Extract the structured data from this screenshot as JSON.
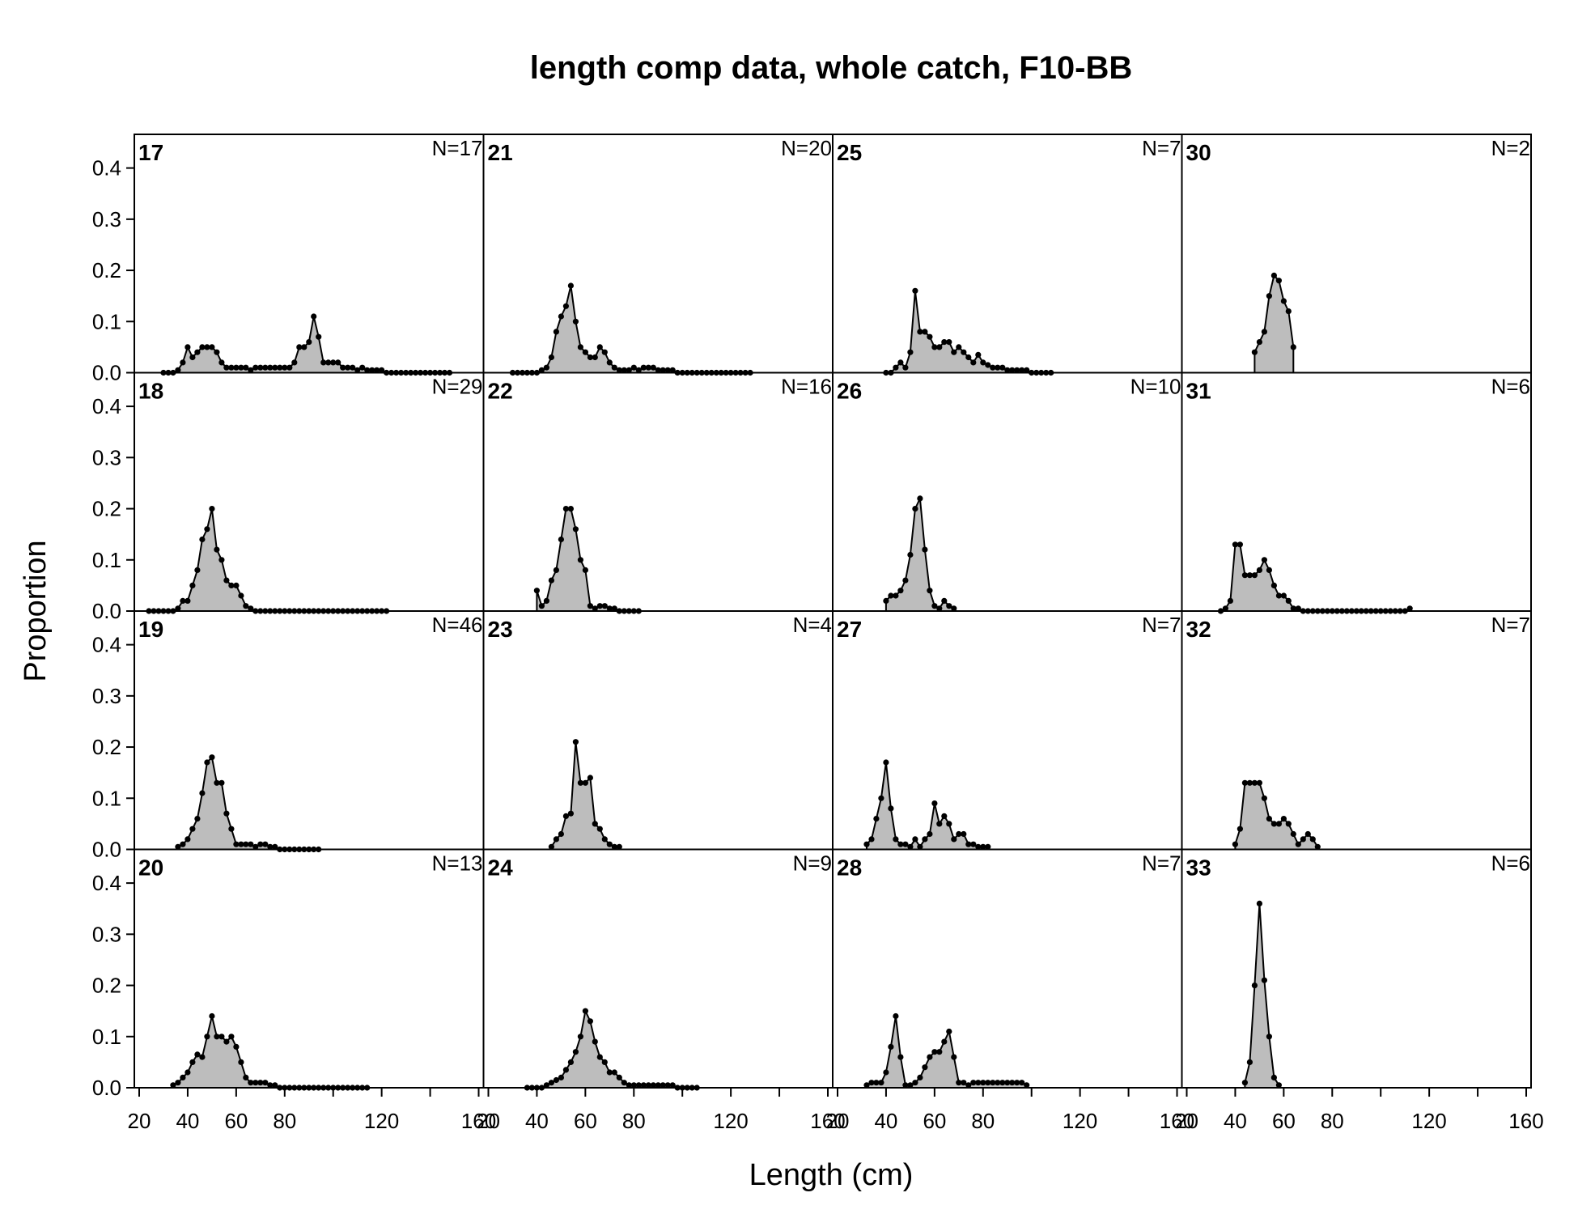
{
  "title": "length comp data, whole catch, F10-BB",
  "chart_data": {
    "type": "area",
    "title": "length comp data, whole catch, F10-BB",
    "xlabel": "Length (cm)",
    "ylabel": "Proportion",
    "xlim": [
      20,
      160
    ],
    "ylim": [
      0,
      0.45
    ],
    "x_ticks": [
      20,
      40,
      60,
      80,
      120,
      160
    ],
    "y_ticks": [
      "0.0",
      "0.1",
      "0.2",
      "0.3",
      "0.4"
    ],
    "fill_color": "#bdbdbd",
    "panels": [
      {
        "label": "17",
        "n": "N=17",
        "x": [
          30,
          32,
          34,
          36,
          38,
          40,
          42,
          44,
          46,
          48,
          50,
          52,
          54,
          56,
          58,
          60,
          62,
          64,
          66,
          68,
          70,
          72,
          74,
          76,
          78,
          80,
          82,
          84,
          86,
          88,
          90,
          92,
          94,
          96,
          98,
          100,
          102,
          104,
          106,
          108,
          110,
          112,
          114,
          116,
          118,
          120,
          122,
          124,
          126,
          128,
          130,
          132,
          134,
          136,
          138,
          140,
          142,
          144,
          146,
          148
        ],
        "y": [
          0,
          0,
          0,
          0.005,
          0.02,
          0.05,
          0.03,
          0.04,
          0.05,
          0.05,
          0.05,
          0.04,
          0.02,
          0.01,
          0.01,
          0.01,
          0.01,
          0.01,
          0.005,
          0.01,
          0.01,
          0.01,
          0.01,
          0.01,
          0.01,
          0.01,
          0.01,
          0.02,
          0.05,
          0.05,
          0.06,
          0.11,
          0.07,
          0.02,
          0.02,
          0.02,
          0.02,
          0.01,
          0.01,
          0.01,
          0.005,
          0.01,
          0.005,
          0.005,
          0.005,
          0.005,
          0,
          0,
          0,
          0,
          0,
          0,
          0,
          0,
          0,
          0,
          0,
          0,
          0,
          0
        ]
      },
      {
        "label": "18",
        "n": "N=29",
        "x": [
          24,
          26,
          28,
          30,
          32,
          34,
          36,
          38,
          40,
          42,
          44,
          46,
          48,
          50,
          52,
          54,
          56,
          58,
          60,
          62,
          64,
          66,
          68,
          70,
          72,
          74,
          76,
          78,
          80,
          82,
          84,
          86,
          88,
          90,
          92,
          94,
          96,
          98,
          100,
          102,
          104,
          106,
          108,
          110,
          112,
          114,
          116,
          118,
          120,
          122
        ],
        "y": [
          0,
          0,
          0,
          0,
          0,
          0,
          0.005,
          0.02,
          0.02,
          0.05,
          0.08,
          0.14,
          0.16,
          0.2,
          0.12,
          0.1,
          0.06,
          0.05,
          0.05,
          0.03,
          0.01,
          0.005,
          0,
          0,
          0,
          0,
          0,
          0,
          0,
          0,
          0,
          0,
          0,
          0,
          0,
          0,
          0,
          0,
          0,
          0,
          0,
          0,
          0,
          0,
          0,
          0,
          0,
          0,
          0,
          0
        ]
      },
      {
        "label": "19",
        "n": "N=46",
        "x": [
          36,
          38,
          40,
          42,
          44,
          46,
          48,
          50,
          52,
          54,
          56,
          58,
          60,
          62,
          64,
          66,
          68,
          70,
          72,
          74,
          76,
          78,
          80,
          82,
          84,
          86,
          88,
          90,
          92,
          94
        ],
        "y": [
          0.005,
          0.01,
          0.02,
          0.04,
          0.06,
          0.11,
          0.17,
          0.18,
          0.13,
          0.13,
          0.07,
          0.04,
          0.01,
          0.01,
          0.01,
          0.01,
          0.005,
          0.01,
          0.01,
          0.005,
          0.005,
          0,
          0,
          0,
          0,
          0,
          0,
          0,
          0,
          0
        ]
      },
      {
        "label": "20",
        "n": "N=13",
        "x": [
          34,
          36,
          38,
          40,
          42,
          44,
          46,
          48,
          50,
          52,
          54,
          56,
          58,
          60,
          62,
          64,
          66,
          68,
          70,
          72,
          74,
          76,
          78,
          80,
          82,
          84,
          86,
          88,
          90,
          92,
          94,
          96,
          98,
          100,
          102,
          104,
          106,
          108,
          110,
          112,
          114
        ],
        "y": [
          0.005,
          0.01,
          0.02,
          0.03,
          0.05,
          0.065,
          0.06,
          0.1,
          0.14,
          0.1,
          0.1,
          0.09,
          0.1,
          0.08,
          0.05,
          0.02,
          0.01,
          0.01,
          0.01,
          0.01,
          0.005,
          0.005,
          0,
          0,
          0,
          0,
          0,
          0,
          0,
          0,
          0,
          0,
          0,
          0,
          0,
          0,
          0,
          0,
          0,
          0,
          0
        ]
      },
      {
        "label": "21",
        "n": "N=20",
        "x": [
          30,
          32,
          34,
          36,
          38,
          40,
          42,
          44,
          46,
          48,
          50,
          52,
          54,
          56,
          58,
          60,
          62,
          64,
          66,
          68,
          70,
          72,
          74,
          76,
          78,
          80,
          82,
          84,
          86,
          88,
          90,
          92,
          94,
          96,
          98,
          100,
          102,
          104,
          106,
          108,
          110,
          112,
          114,
          116,
          118,
          120,
          122,
          124,
          126,
          128
        ],
        "y": [
          0,
          0,
          0,
          0,
          0,
          0,
          0.005,
          0.01,
          0.03,
          0.08,
          0.11,
          0.13,
          0.17,
          0.1,
          0.05,
          0.04,
          0.03,
          0.03,
          0.05,
          0.04,
          0.02,
          0.01,
          0.005,
          0.005,
          0.005,
          0.01,
          0.005,
          0.01,
          0.01,
          0.01,
          0.005,
          0.005,
          0.005,
          0.005,
          0,
          0,
          0,
          0,
          0,
          0,
          0,
          0,
          0,
          0,
          0,
          0,
          0,
          0,
          0,
          0
        ]
      },
      {
        "label": "22",
        "n": "N=16",
        "x": [
          40,
          42,
          44,
          46,
          48,
          50,
          52,
          54,
          56,
          58,
          60,
          62,
          64,
          66,
          68,
          70,
          72,
          74,
          76,
          78,
          80,
          82
        ],
        "y": [
          0.04,
          0.01,
          0.02,
          0.06,
          0.08,
          0.14,
          0.2,
          0.2,
          0.16,
          0.1,
          0.08,
          0.01,
          0.005,
          0.01,
          0.01,
          0.005,
          0.005,
          0,
          0,
          0,
          0,
          0
        ]
      },
      {
        "label": "23",
        "n": "N=4",
        "x": [
          46,
          48,
          50,
          52,
          54,
          56,
          58,
          60,
          62,
          64,
          66,
          68,
          70,
          72,
          74
        ],
        "y": [
          0.005,
          0.02,
          0.03,
          0.065,
          0.07,
          0.21,
          0.13,
          0.13,
          0.14,
          0.05,
          0.04,
          0.02,
          0.01,
          0.005,
          0.005
        ]
      },
      {
        "label": "24",
        "n": "N=9",
        "x": [
          36,
          38,
          40,
          42,
          44,
          46,
          48,
          50,
          52,
          54,
          56,
          58,
          60,
          62,
          64,
          66,
          68,
          70,
          72,
          74,
          76,
          78,
          80,
          82,
          84,
          86,
          88,
          90,
          92,
          94,
          96,
          98,
          100,
          102,
          104,
          106
        ],
        "y": [
          0,
          0,
          0,
          0,
          0.005,
          0.01,
          0.015,
          0.02,
          0.035,
          0.05,
          0.07,
          0.1,
          0.15,
          0.13,
          0.09,
          0.06,
          0.05,
          0.03,
          0.03,
          0.02,
          0.01,
          0.005,
          0.005,
          0.005,
          0.005,
          0.005,
          0.005,
          0.005,
          0.005,
          0.005,
          0.005,
          0,
          0,
          0,
          0,
          0
        ]
      },
      {
        "label": "25",
        "n": "N=7",
        "x": [
          40,
          42,
          44,
          46,
          48,
          50,
          52,
          54,
          56,
          58,
          60,
          62,
          64,
          66,
          68,
          70,
          72,
          74,
          76,
          78,
          80,
          82,
          84,
          86,
          88,
          90,
          92,
          94,
          96,
          98,
          100,
          102,
          104,
          106,
          108
        ],
        "y": [
          0,
          0,
          0.01,
          0.02,
          0.01,
          0.04,
          0.16,
          0.08,
          0.08,
          0.07,
          0.05,
          0.05,
          0.06,
          0.06,
          0.04,
          0.05,
          0.04,
          0.03,
          0.02,
          0.035,
          0.02,
          0.015,
          0.01,
          0.01,
          0.01,
          0.005,
          0.005,
          0.005,
          0.005,
          0.005,
          0,
          0,
          0,
          0,
          0
        ]
      },
      {
        "label": "26",
        "n": "N=10",
        "x": [
          40,
          42,
          44,
          46,
          48,
          50,
          52,
          54,
          56,
          58,
          60,
          62,
          64,
          66,
          68
        ],
        "y": [
          0.02,
          0.03,
          0.03,
          0.04,
          0.06,
          0.11,
          0.2,
          0.22,
          0.12,
          0.04,
          0.01,
          0.005,
          0.02,
          0.01,
          0.005
        ]
      },
      {
        "label": "27",
        "n": "N=7",
        "x": [
          32,
          34,
          36,
          38,
          40,
          42,
          44,
          46,
          48,
          50,
          52,
          54,
          56,
          58,
          60,
          62,
          64,
          66,
          68,
          70,
          72,
          74,
          76,
          78,
          80,
          82
        ],
        "y": [
          0.01,
          0.02,
          0.06,
          0.1,
          0.17,
          0.08,
          0.02,
          0.01,
          0.01,
          0.005,
          0.02,
          0.005,
          0.02,
          0.03,
          0.09,
          0.05,
          0.065,
          0.05,
          0.02,
          0.03,
          0.03,
          0.01,
          0.01,
          0.005,
          0.005,
          0.005
        ]
      },
      {
        "label": "28",
        "n": "N=7",
        "x": [
          32,
          34,
          36,
          38,
          40,
          42,
          44,
          46,
          48,
          50,
          52,
          54,
          56,
          58,
          60,
          62,
          64,
          66,
          68,
          70,
          72,
          74,
          76,
          78,
          80,
          82,
          84,
          86,
          88,
          90,
          92,
          94,
          96,
          98
        ],
        "y": [
          0.005,
          0.01,
          0.01,
          0.01,
          0.03,
          0.08,
          0.14,
          0.06,
          0.005,
          0.005,
          0.01,
          0.02,
          0.04,
          0.06,
          0.07,
          0.07,
          0.09,
          0.11,
          0.06,
          0.01,
          0.01,
          0.005,
          0.01,
          0.01,
          0.01,
          0.01,
          0.01,
          0.01,
          0.01,
          0.01,
          0.01,
          0.01,
          0.01,
          0.005
        ]
      },
      {
        "label": "30",
        "n": "N=2",
        "x": [
          48,
          50,
          52,
          54,
          56,
          58,
          60,
          62,
          64
        ],
        "y": [
          0.04,
          0.06,
          0.08,
          0.15,
          0.19,
          0.18,
          0.14,
          0.12,
          0.05
        ]
      },
      {
        "label": "31",
        "n": "N=6",
        "x": [
          34,
          36,
          38,
          40,
          42,
          44,
          46,
          48,
          50,
          52,
          54,
          56,
          58,
          60,
          62,
          64,
          66,
          68,
          70,
          72,
          74,
          76,
          78,
          80,
          82,
          84,
          86,
          88,
          90,
          92,
          94,
          96,
          98,
          100,
          102,
          104,
          106,
          108,
          110,
          112
        ],
        "y": [
          0,
          0.005,
          0.02,
          0.13,
          0.13,
          0.07,
          0.07,
          0.07,
          0.08,
          0.1,
          0.08,
          0.05,
          0.03,
          0.03,
          0.02,
          0.005,
          0.005,
          0,
          0,
          0,
          0,
          0,
          0,
          0,
          0,
          0,
          0,
          0,
          0,
          0,
          0,
          0,
          0,
          0,
          0,
          0,
          0,
          0,
          0,
          0.005
        ]
      },
      {
        "label": "32",
        "n": "N=7",
        "x": [
          40,
          42,
          44,
          46,
          48,
          50,
          52,
          54,
          56,
          58,
          60,
          62,
          64,
          66,
          68,
          70,
          72,
          74
        ],
        "y": [
          0.01,
          0.04,
          0.13,
          0.13,
          0.13,
          0.13,
          0.1,
          0.06,
          0.05,
          0.05,
          0.06,
          0.05,
          0.03,
          0.01,
          0.02,
          0.03,
          0.02,
          0.005
        ]
      },
      {
        "label": "33",
        "n": "N=6",
        "x": [
          44,
          46,
          48,
          50,
          52,
          54,
          56,
          58
        ],
        "y": [
          0.01,
          0.05,
          0.2,
          0.36,
          0.21,
          0.1,
          0.02,
          0.005
        ]
      }
    ]
  }
}
